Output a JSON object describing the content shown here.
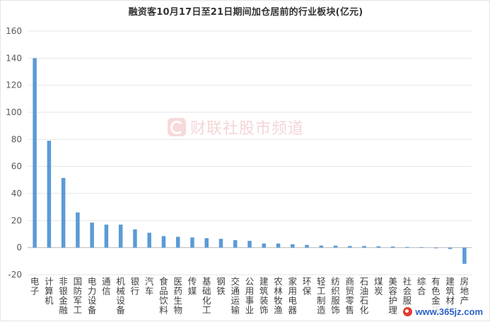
{
  "chart_data": {
    "type": "bar",
    "title": "融资客10月17日至21日期间加仓居前的行业板块(亿元)",
    "ylim": [
      -20,
      160
    ],
    "yticks": [
      -20,
      0,
      20,
      40,
      60,
      80,
      100,
      120,
      140,
      160
    ],
    "grid": true,
    "bar_color": "#5b9bd5",
    "categories": [
      "电子",
      "计算机",
      "非银金融",
      "国防军工",
      "电力设备",
      "通信",
      "机械设备",
      "银行",
      "汽车",
      "食品饮料",
      "医药生物",
      "传媒",
      "基础化工",
      "钢铁",
      "交通运输",
      "公用事业",
      "建筑装饰",
      "农林牧渔",
      "家用电器",
      "环保",
      "轻工制造",
      "纺织服饰",
      "商贸零售",
      "石油石化",
      "煤炭",
      "美容护理",
      "社会服务",
      "综合",
      "有色金属",
      "建筑材料",
      "房地产"
    ],
    "values": [
      140,
      79,
      51.5,
      26,
      18.5,
      17,
      17,
      13.5,
      11,
      8.5,
      8,
      7.5,
      7,
      6.5,
      5.5,
      5,
      3,
      3,
      2.5,
      2,
      1.5,
      1.5,
      1.2,
      1.2,
      1,
      0.8,
      0.5,
      0.3,
      -0.5,
      -1,
      -12
    ]
  },
  "watermark": {
    "text": "财联社股市频道"
  },
  "site_mark": {
    "text": "www.365jz.com"
  }
}
